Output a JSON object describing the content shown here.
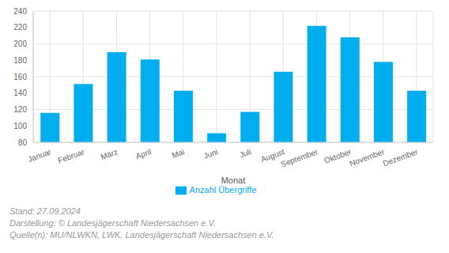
{
  "chart_data": {
    "type": "bar",
    "categories": [
      "Januar",
      "Februar",
      "März",
      "April",
      "Mai",
      "Juni",
      "Juli",
      "August",
      "September",
      "Oktober",
      "November",
      "Dezember"
    ],
    "series": [
      {
        "name": "Anzahl Übergriffe",
        "color": "#00aeef",
        "values": [
          116,
          151,
          190,
          181,
          143,
          91,
          117,
          166,
          222,
          208,
          178,
          143
        ]
      }
    ],
    "xlabel": "Monat",
    "ylim": [
      80,
      240
    ],
    "yticks": [
      80,
      100,
      120,
      140,
      160,
      180,
      200,
      220,
      240
    ],
    "grid": true,
    "legend": "bottom",
    "annotations": [
      "Stand: 27.09.2024",
      "Darstellung: © Landesjägerschaft Niedersachsen e.V.",
      "Quelle(n): MU/NLWKN, LWK, Landesjägerschaft Niedersachsen e.V."
    ]
  }
}
